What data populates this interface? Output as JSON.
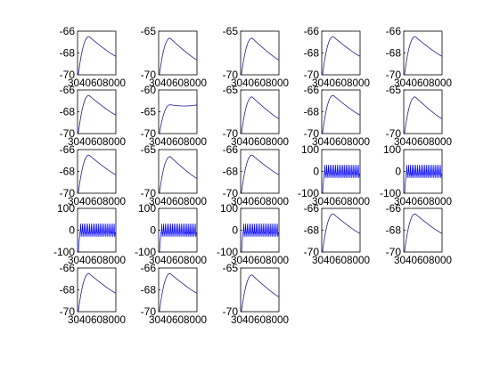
{
  "colors": {
    "curve": "#1f1f8f",
    "spike": "#0000ff",
    "axes": "#000000",
    "background": "#ffffff"
  },
  "chart_data": [
    {
      "type": "line",
      "shape": "decay",
      "ylim": [
        -70,
        -66
      ],
      "yticks": [
        "-66",
        "-68",
        "-70"
      ],
      "xtick_text": "3040608000",
      "peak": -66.5,
      "end": -68.3
    },
    {
      "type": "line",
      "shape": "decay",
      "ylim": [
        -70,
        -65
      ],
      "yticks": [
        "-65",
        "-70"
      ],
      "xtick_text": "3040608000",
      "peak": -65.8,
      "end": -68.3
    },
    {
      "type": "line",
      "shape": "decay",
      "ylim": [
        -70,
        -65
      ],
      "yticks": [
        "-65",
        "-70"
      ],
      "xtick_text": "3040608000",
      "peak": -65.8,
      "end": -68.3
    },
    {
      "type": "line",
      "shape": "decay",
      "ylim": [
        -70,
        -66
      ],
      "yticks": [
        "-66",
        "-68",
        "-70"
      ],
      "xtick_text": "3040608000",
      "peak": -66.5,
      "end": -68.3
    },
    {
      "type": "line",
      "shape": "decay",
      "ylim": [
        -70,
        -66
      ],
      "yticks": [
        "-66",
        "-68",
        "-70"
      ],
      "xtick_text": "3040608000",
      "peak": -66.5,
      "end": -68.3
    },
    {
      "type": "line",
      "shape": "decay",
      "ylim": [
        -70,
        -66
      ],
      "yticks": [
        "-66",
        "-68",
        "-70"
      ],
      "xtick_text": "3040608000",
      "peak": -66.5,
      "end": -68.3
    },
    {
      "type": "line",
      "shape": "plateau",
      "ylim": [
        -70,
        -60
      ],
      "yticks": [
        "-60",
        "-65",
        "-70"
      ],
      "xtick_text": "3040608000",
      "peak": -63.4,
      "end": -63.2
    },
    {
      "type": "line",
      "shape": "decay",
      "ylim": [
        -70,
        -65
      ],
      "yticks": [
        "-65",
        "-70"
      ],
      "xtick_text": "3040608000",
      "peak": -65.8,
      "end": -68.3
    },
    {
      "type": "line",
      "shape": "decay",
      "ylim": [
        -70,
        -66
      ],
      "yticks": [
        "-66",
        "-68",
        "-70"
      ],
      "xtick_text": "3040608000",
      "peak": -66.5,
      "end": -68.3
    },
    {
      "type": "line",
      "shape": "decay",
      "ylim": [
        -70,
        -65
      ],
      "yticks": [
        "-65",
        "-70"
      ],
      "xtick_text": "3040608000",
      "peak": -65.8,
      "end": -68.3
    },
    {
      "type": "line",
      "shape": "decay",
      "ylim": [
        -70,
        -66
      ],
      "yticks": [
        "-66",
        "-68",
        "-70"
      ],
      "xtick_text": "3040608000",
      "peak": -66.5,
      "end": -68.3
    },
    {
      "type": "line",
      "shape": "decay",
      "ylim": [
        -70,
        -65
      ],
      "yticks": [
        "-65",
        "-70"
      ],
      "xtick_text": "3040608000",
      "peak": -65.8,
      "end": -68.3
    },
    {
      "type": "line",
      "shape": "decay",
      "ylim": [
        -70,
        -66
      ],
      "yticks": [
        "-66",
        "-68",
        "-70"
      ],
      "xtick_text": "3040608000",
      "peak": -66.5,
      "end": -68.3
    },
    {
      "type": "line",
      "shape": "spikes",
      "ylim": [
        -100,
        100
      ],
      "yticks": [
        "100",
        "0",
        "-100"
      ],
      "xtick_text": "3040608000",
      "rest": -10,
      "spike_peak": 30,
      "spike_trough": -30
    },
    {
      "type": "line",
      "shape": "spikes",
      "ylim": [
        -100,
        100
      ],
      "yticks": [
        "100",
        "0",
        "-100"
      ],
      "xtick_text": "3040608000",
      "rest": -10,
      "spike_peak": 30,
      "spike_trough": -30
    },
    {
      "type": "line",
      "shape": "spikes",
      "ylim": [
        -100,
        100
      ],
      "yticks": [
        "100",
        "0",
        "-100"
      ],
      "xtick_text": "3040608000",
      "rest": -10,
      "spike_peak": 30,
      "spike_trough": -30
    },
    {
      "type": "line",
      "shape": "spikes",
      "ylim": [
        -100,
        100
      ],
      "yticks": [
        "100",
        "0",
        "-100"
      ],
      "xtick_text": "3040608000",
      "rest": -10,
      "spike_peak": 30,
      "spike_trough": -30
    },
    {
      "type": "line",
      "shape": "spikes",
      "ylim": [
        -100,
        100
      ],
      "yticks": [
        "100",
        "0",
        "-100"
      ],
      "xtick_text": "3040608000",
      "rest": -10,
      "spike_peak": 30,
      "spike_trough": -30
    },
    {
      "type": "line",
      "shape": "decay",
      "ylim": [
        -70,
        -66
      ],
      "yticks": [
        "-66",
        "-68",
        "-70"
      ],
      "xtick_text": "3040608000",
      "peak": -66.5,
      "end": -68.3
    },
    {
      "type": "line",
      "shape": "decay",
      "ylim": [
        -70,
        -66
      ],
      "yticks": [
        "-66",
        "-68",
        "-70"
      ],
      "xtick_text": "3040608000",
      "peak": -66.5,
      "end": -68.3
    },
    {
      "type": "line",
      "shape": "decay",
      "ylim": [
        -70,
        -66
      ],
      "yticks": [
        "-66",
        "-68",
        "-70"
      ],
      "xtick_text": "3040608000",
      "peak": -66.5,
      "end": -68.3
    },
    {
      "type": "line",
      "shape": "decay",
      "ylim": [
        -70,
        -66
      ],
      "yticks": [
        "-66",
        "-68",
        "-70"
      ],
      "xtick_text": "3040608000",
      "peak": -66.5,
      "end": -68.3
    },
    {
      "type": "line",
      "shape": "decay",
      "ylim": [
        -70,
        -65
      ],
      "yticks": [
        "-65",
        "-70"
      ],
      "xtick_text": "3040608000",
      "peak": -65.8,
      "end": -68.3
    }
  ]
}
